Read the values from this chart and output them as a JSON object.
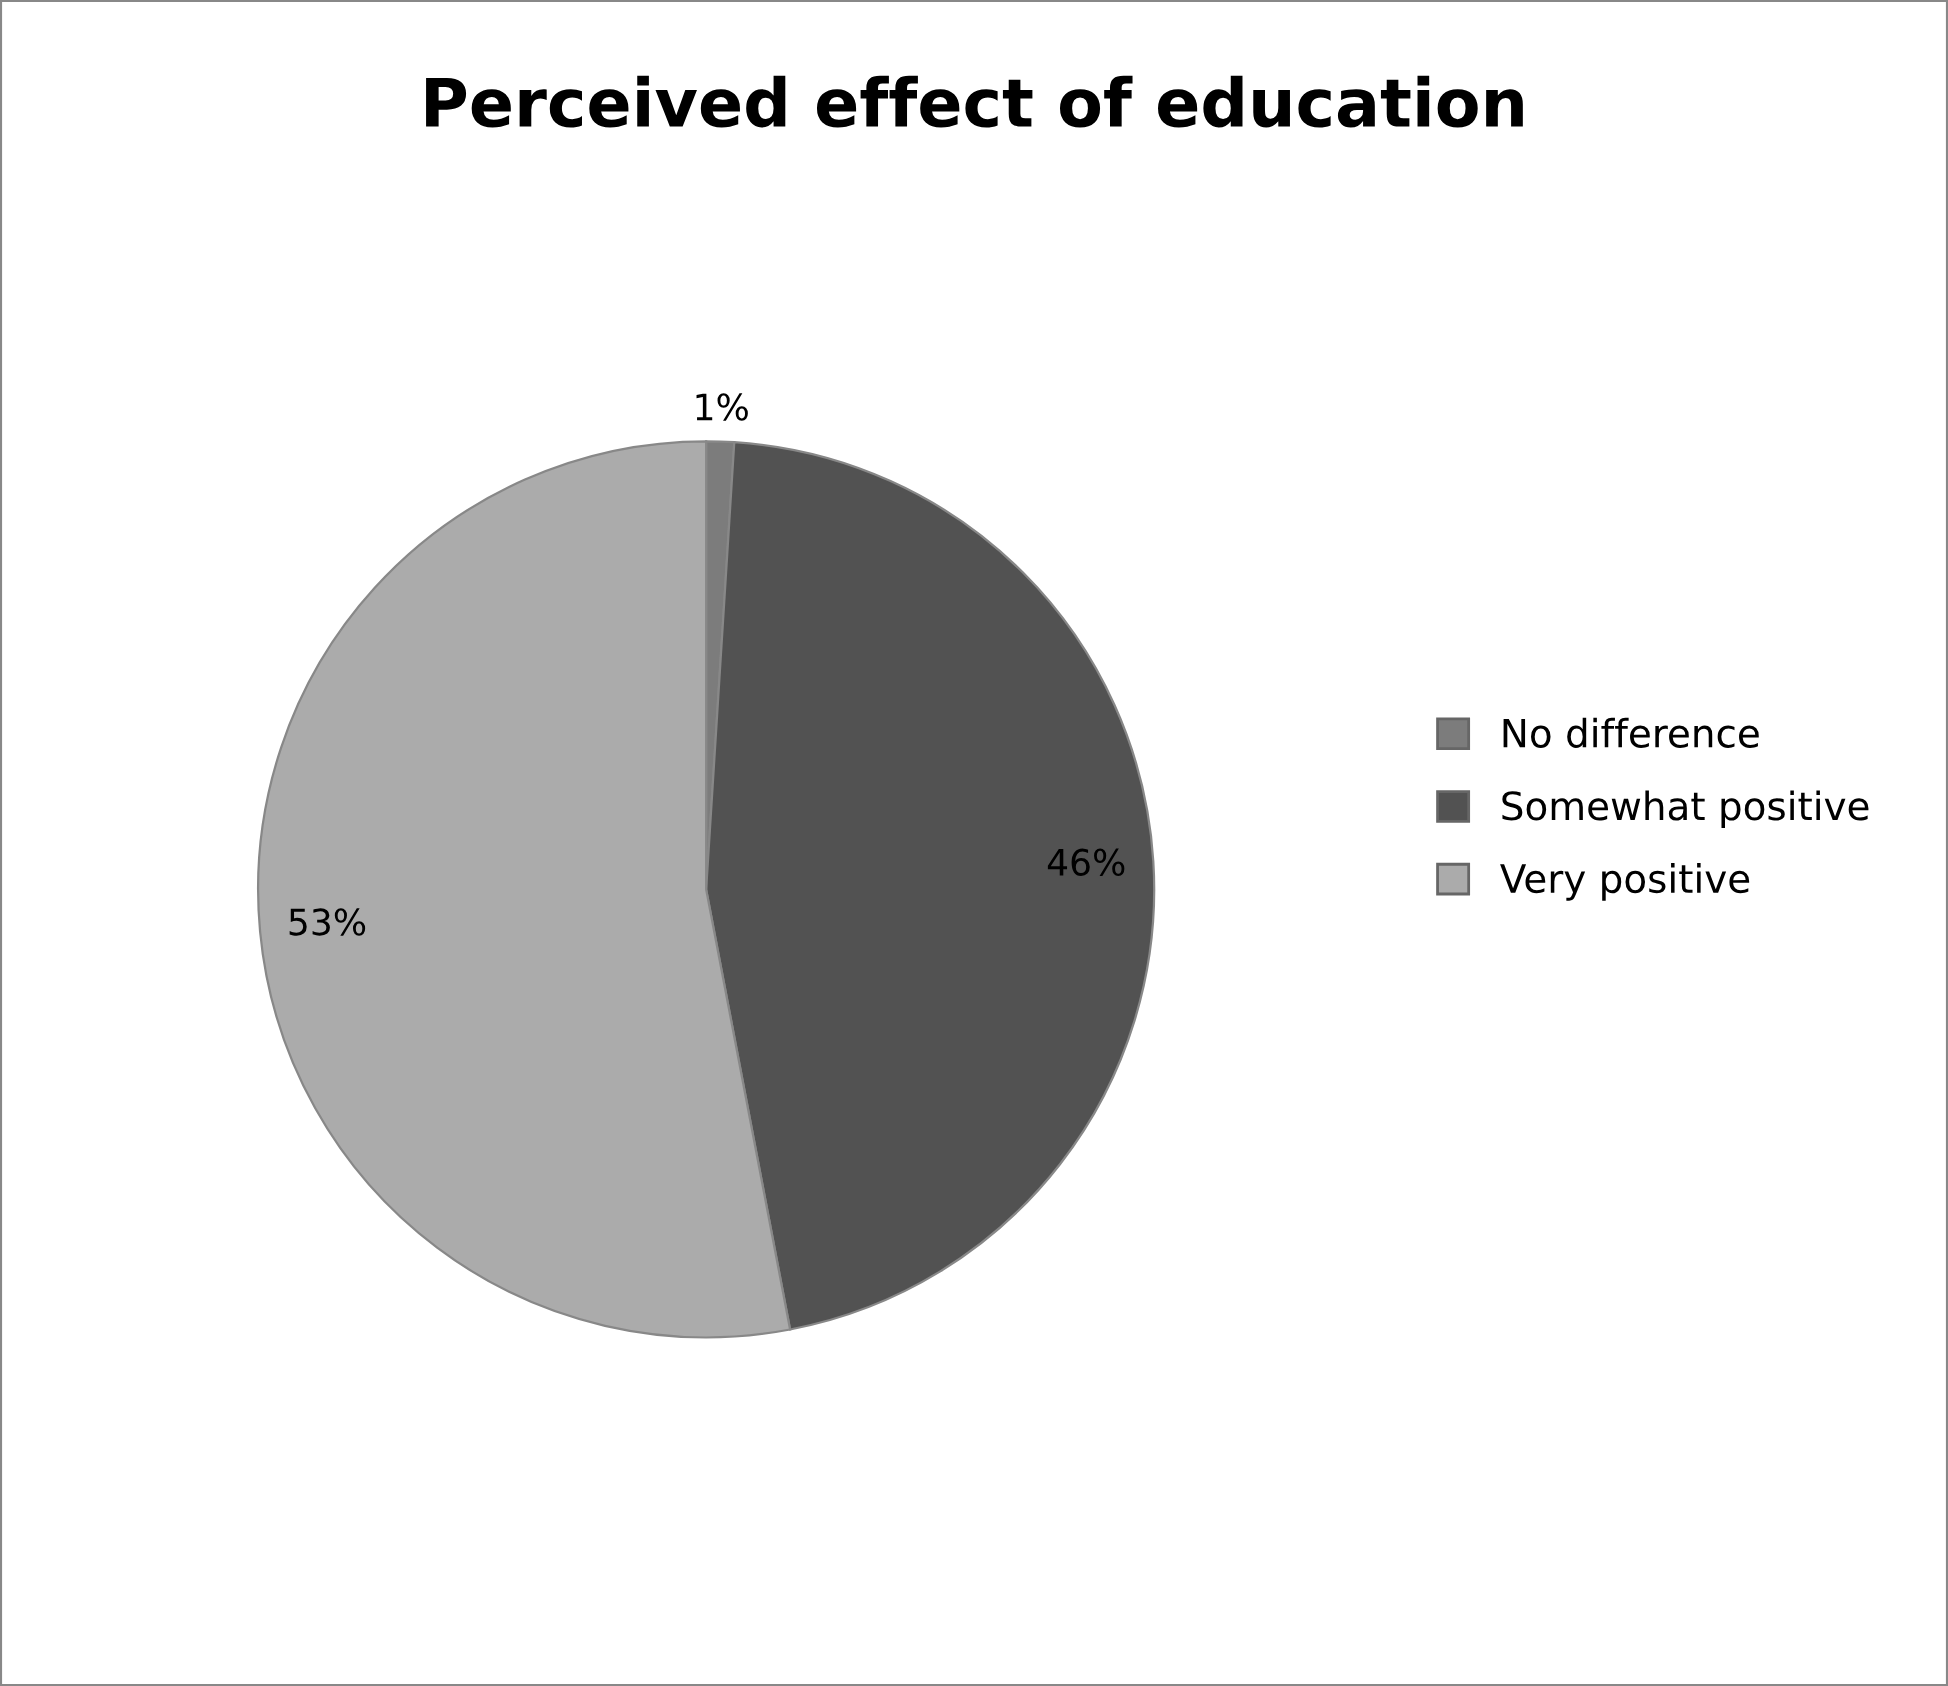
{
  "chart_data": {
    "type": "pie",
    "title": "Perceived effect of education",
    "categories": [
      "No difference",
      "Somewhat positive",
      "Very positive"
    ],
    "values": [
      1,
      46,
      53
    ],
    "colors": [
      "#7c7c7c",
      "#525252",
      "#ababab"
    ],
    "value_labels": [
      "1%",
      "46%",
      "53%"
    ],
    "legend": "right"
  }
}
